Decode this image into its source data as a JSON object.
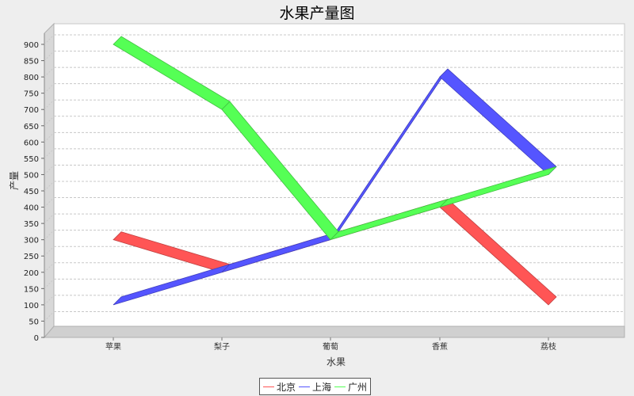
{
  "chart_data": {
    "type": "line",
    "title": "水果产量图",
    "xlabel": "水果",
    "ylabel": "产量",
    "categories": [
      "苹果",
      "梨子",
      "葡萄",
      "香蕉",
      "荔枝"
    ],
    "series": [
      {
        "name": "北京",
        "color": "#ff5555",
        "values": [
          300,
          200,
          300,
          400,
          100
        ]
      },
      {
        "name": "上海",
        "color": "#5555ff",
        "values": [
          100,
          200,
          300,
          800,
          500
        ]
      },
      {
        "name": "广州",
        "color": "#55ff55",
        "values": [
          900,
          700,
          300,
          400,
          500
        ]
      }
    ],
    "ylim": [
      0,
      950
    ],
    "yticks": [
      0,
      50,
      100,
      150,
      200,
      250,
      300,
      350,
      400,
      450,
      500,
      550,
      600,
      650,
      700,
      750,
      800,
      850,
      900
    ],
    "grid": true,
    "legend_position": "bottom",
    "style": "3d"
  }
}
